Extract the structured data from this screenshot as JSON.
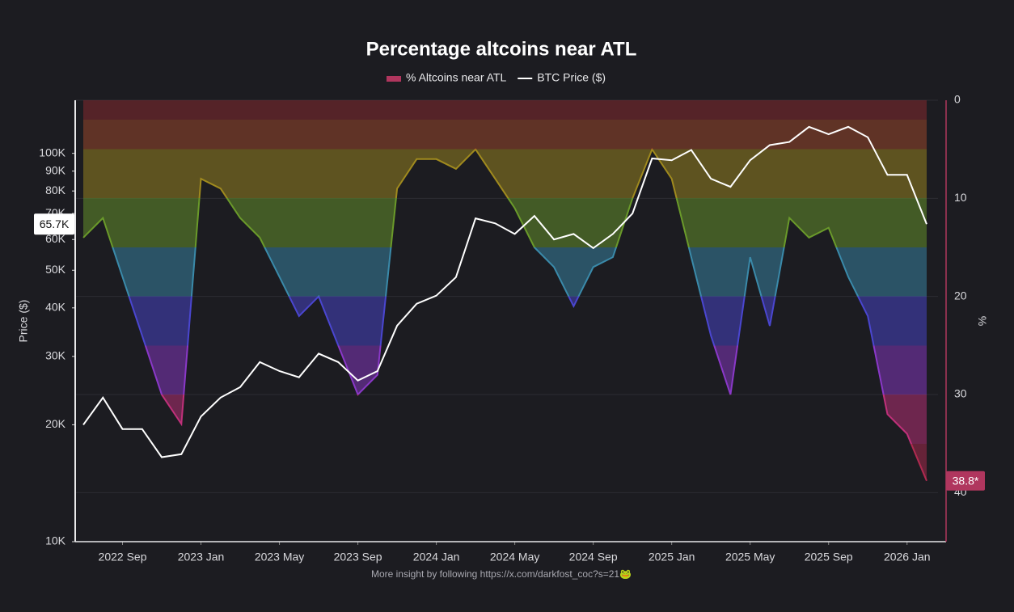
{
  "chart_data": {
    "type": "dual-area-line",
    "title": "Percentage altcoins near ATL",
    "y_label": "Price ($)",
    "y2_label": "%",
    "footer": "More insight by following https://x.com/darkfost_coc?s=21🐸",
    "x": [
      "2022-07",
      "2022-08",
      "2022-09",
      "2022-10",
      "2022-11",
      "2022-12",
      "2023-01",
      "2023-02",
      "2023-03",
      "2023-04",
      "2023-05",
      "2023-06",
      "2023-07",
      "2023-08",
      "2023-09",
      "2023-10",
      "2023-11",
      "2023-12",
      "2024-01",
      "2024-02",
      "2024-03",
      "2024-04",
      "2024-05",
      "2024-06",
      "2024-07",
      "2024-08",
      "2024-09",
      "2024-10",
      "2024-11",
      "2024-12",
      "2025-01",
      "2025-02",
      "2025-03",
      "2025-04",
      "2025-05",
      "2025-06",
      "2025-07",
      "2025-08",
      "2025-09",
      "2025-10",
      "2025-11",
      "2025-12",
      "2026-01",
      "2026-02"
    ],
    "xticks": [
      {
        "value": "2022-09",
        "label": "2022 Sep"
      },
      {
        "value": "2023-01",
        "label": "2023 Jan"
      },
      {
        "value": "2023-05",
        "label": "2023 May"
      },
      {
        "value": "2023-09",
        "label": "2023 Sep"
      },
      {
        "value": "2024-01",
        "label": "2024 Jan"
      },
      {
        "value": "2024-05",
        "label": "2024 May"
      },
      {
        "value": "2024-09",
        "label": "2024 Sep"
      },
      {
        "value": "2025-01",
        "label": "2025 Jan"
      },
      {
        "value": "2025-05",
        "label": "2025 May"
      },
      {
        "value": "2025-09",
        "label": "2025 Sep"
      },
      {
        "value": "2026-01",
        "label": "2026 Jan"
      }
    ],
    "series": [
      {
        "name": "% Altcoins near ATL",
        "color": "#b0365e",
        "axis": "y2",
        "values": [
          14,
          12,
          18,
          24,
          30,
          33,
          8,
          9,
          12,
          14,
          18,
          22,
          20,
          25,
          30,
          28,
          9,
          6,
          6,
          7,
          5,
          8,
          11,
          15,
          17,
          21,
          17,
          16,
          10,
          5,
          8,
          16,
          24,
          30,
          16,
          23,
          12,
          14,
          13,
          18,
          22,
          32,
          34,
          38.8
        ]
      },
      {
        "name": "BTC Price ($)",
        "color": "#ffffff",
        "axis": "y",
        "values": [
          20000,
          23500,
          19500,
          19500,
          16500,
          16800,
          21000,
          23500,
          25000,
          29000,
          27500,
          26500,
          30500,
          29000,
          26000,
          27500,
          36000,
          41000,
          43000,
          48000,
          68000,
          66000,
          62000,
          69000,
          60000,
          62000,
          57000,
          62000,
          70000,
          97000,
          96000,
          102000,
          86000,
          82000,
          96000,
          105000,
          107000,
          117000,
          112000,
          117000,
          110000,
          88000,
          88000,
          65700
        ]
      }
    ],
    "ylim": [
      10000,
      137000
    ],
    "log_y": true,
    "yticks": [
      {
        "value": 10000,
        "label": "10K"
      },
      {
        "value": 20000,
        "label": "20K"
      },
      {
        "value": 30000,
        "label": "30K"
      },
      {
        "value": 40000,
        "label": "40K"
      },
      {
        "value": 50000,
        "label": "50K"
      },
      {
        "value": 60000,
        "label": "60K"
      },
      {
        "value": 70000,
        "label": "70K"
      },
      {
        "value": 80000,
        "label": "80K"
      },
      {
        "value": 90000,
        "label": "90K"
      },
      {
        "value": 100000,
        "label": "100K"
      }
    ],
    "y2lim": [
      0,
      45
    ],
    "y2_reversed": true,
    "y2ticks": [
      0,
      10,
      20,
      30,
      40
    ],
    "grid": true,
    "annotations": [
      {
        "text": "65.7K",
        "value": 65700,
        "axis": "y"
      },
      {
        "text": "38.8*",
        "value": 38.8,
        "axis": "y2"
      }
    ]
  }
}
